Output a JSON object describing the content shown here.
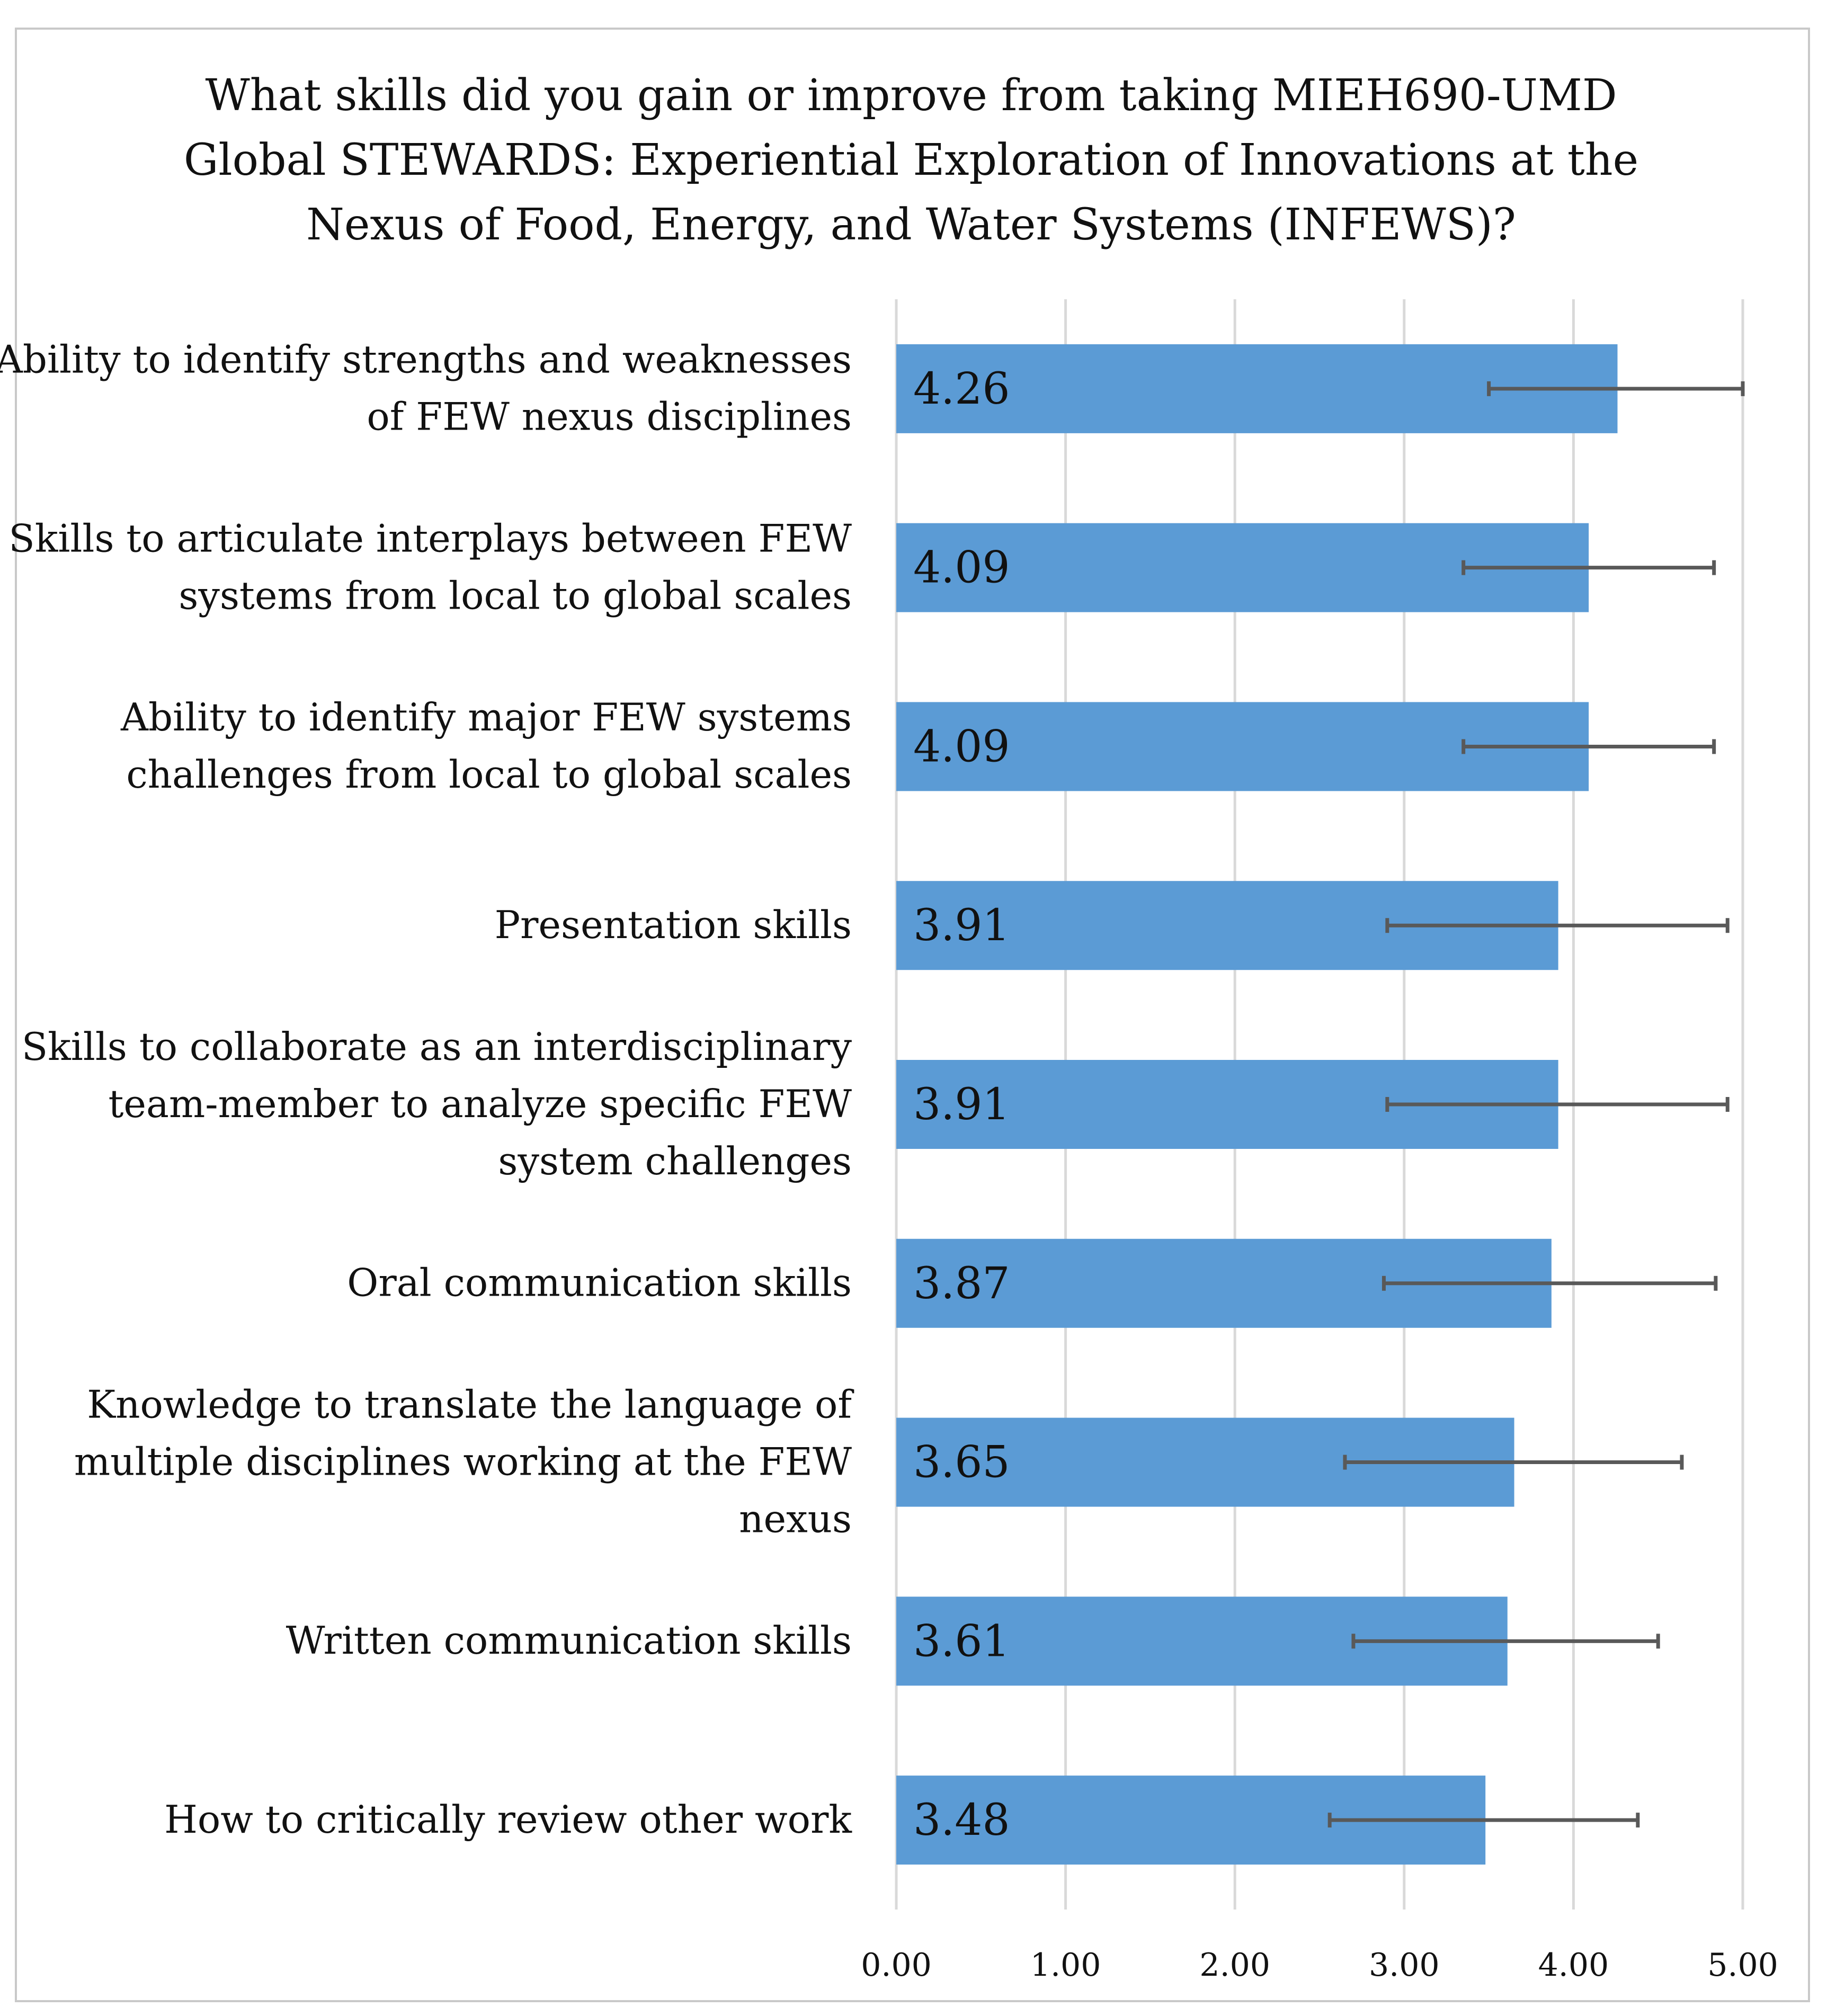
{
  "chart_data": {
    "type": "bar",
    "orientation": "horizontal",
    "title_lines": [
      "What skills did you gain or improve from taking MIEH690-UMD",
      "Global STEWARDS: Experiential Exploration of Innovations at the",
      "Nexus of Food, Energy, and Water Systems (INFEWS)?"
    ],
    "categories": [
      [
        "Ability to identify strengths and weaknesses",
        "of FEW nexus disciplines"
      ],
      [
        "Skills to articulate interplays between FEW",
        "systems from local to global scales"
      ],
      [
        "Ability to identify major FEW systems",
        "challenges from local to global scales"
      ],
      [
        "Presentation skills"
      ],
      [
        "Skills to collaborate as an interdisciplinary",
        "team-member to analyze specific FEW",
        "system challenges"
      ],
      [
        "Oral communication skills"
      ],
      [
        "Knowledge to translate the language of",
        "multiple disciplines working at the FEW",
        "nexus"
      ],
      [
        "Written communication skills"
      ],
      [
        "How to critically review other work"
      ]
    ],
    "values": [
      4.26,
      4.09,
      4.09,
      3.91,
      3.91,
      3.87,
      3.65,
      3.61,
      3.48
    ],
    "value_labels": [
      "4.26",
      "4.09",
      "4.09",
      "3.91",
      "3.91",
      "3.87",
      "3.65",
      "3.61",
      "3.48"
    ],
    "error_low": [
      3.5,
      3.35,
      3.35,
      2.9,
      2.9,
      2.88,
      2.65,
      2.7,
      2.56
    ],
    "error_high": [
      5.0,
      4.83,
      4.83,
      4.91,
      4.91,
      4.84,
      4.64,
      4.5,
      4.38
    ],
    "xlim": [
      0,
      5
    ],
    "xticks": [
      0,
      1,
      2,
      3,
      4,
      5
    ],
    "xtick_labels": [
      "0.00",
      "1.00",
      "2.00",
      "3.00",
      "4.00",
      "5.00"
    ],
    "xlabel": "",
    "ylabel": "",
    "grid": true,
    "legend": "none",
    "colors": {
      "bar": "#5b9bd5",
      "grid": "#d9d9d9",
      "error_bar": "#595959"
    }
  }
}
